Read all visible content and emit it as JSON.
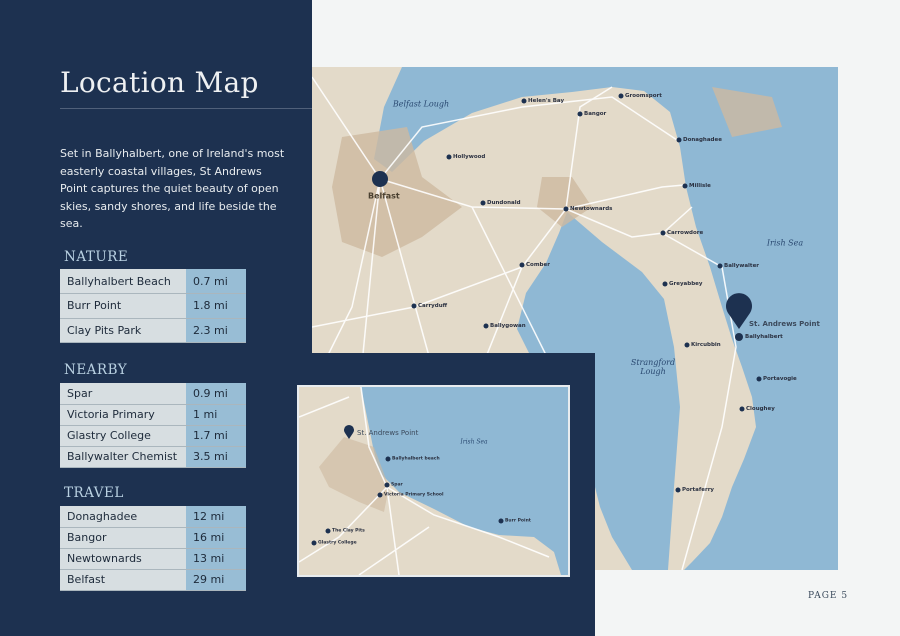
{
  "title": "Location Map",
  "intro": "Set in Ballyhalbert, one of Ireland's most easterly coastal villages, St Andrews Point captures the quiet beauty of open skies, sandy shores, and life beside the sea.",
  "sections": [
    {
      "heading": "NATURE",
      "rows": [
        {
          "place": "Ballyhalbert Beach",
          "distance": "0.7 mi"
        },
        {
          "place": "Burr Point",
          "distance": "1.8 mi"
        },
        {
          "place": "Clay Pits Park",
          "distance": "2.3 mi"
        }
      ]
    },
    {
      "heading": "NEARBY",
      "rows": [
        {
          "place": "Spar",
          "distance": "0.9 mi"
        },
        {
          "place": "Victoria Primary",
          "distance": "1 mi"
        },
        {
          "place": "Glastry College",
          "distance": "1.7 mi"
        },
        {
          "place": "Ballywalter Chemist",
          "distance": "3.5 mi"
        }
      ]
    },
    {
      "heading": "TRAVEL",
      "rows": [
        {
          "place": "Donaghadee",
          "distance": "12 mi"
        },
        {
          "place": "Bangor",
          "distance": "16 mi"
        },
        {
          "place": "Newtownards",
          "distance": "13 mi"
        },
        {
          "place": "Belfast",
          "distance": "29 mi"
        }
      ]
    }
  ],
  "map": {
    "water": [
      "Belfast Lough",
      "Irish Sea",
      "Strangford Lough"
    ],
    "highlight": "St. Andrews Point",
    "towns": [
      "Belfast",
      "Helen's Bay",
      "Groomsport",
      "Bangor",
      "Donaghadee",
      "Hollywood",
      "Dundonald",
      "Newtownards",
      "Millisle",
      "Carrowdore",
      "Ballywalter",
      "Comber",
      "Greyabbey",
      "Carryduff",
      "Ballygowan",
      "Ballyhalbert",
      "Kircubbin",
      "Portavogie",
      "Cloughey",
      "Portaferry"
    ]
  },
  "inset": {
    "highlight": "St. Andrews Point",
    "water": "Irish Sea",
    "places": [
      "Ballyhalbert beach",
      "Spar",
      "Victoria Primary School",
      "Burr Point",
      "The Clay Pits",
      "Glastry College"
    ]
  },
  "colors": {
    "navy": "#1d3150",
    "land": "#e3dac9",
    "urban": "#cdb9a0",
    "sea": "#8fb8d4"
  },
  "page_label": "PAGE 5"
}
